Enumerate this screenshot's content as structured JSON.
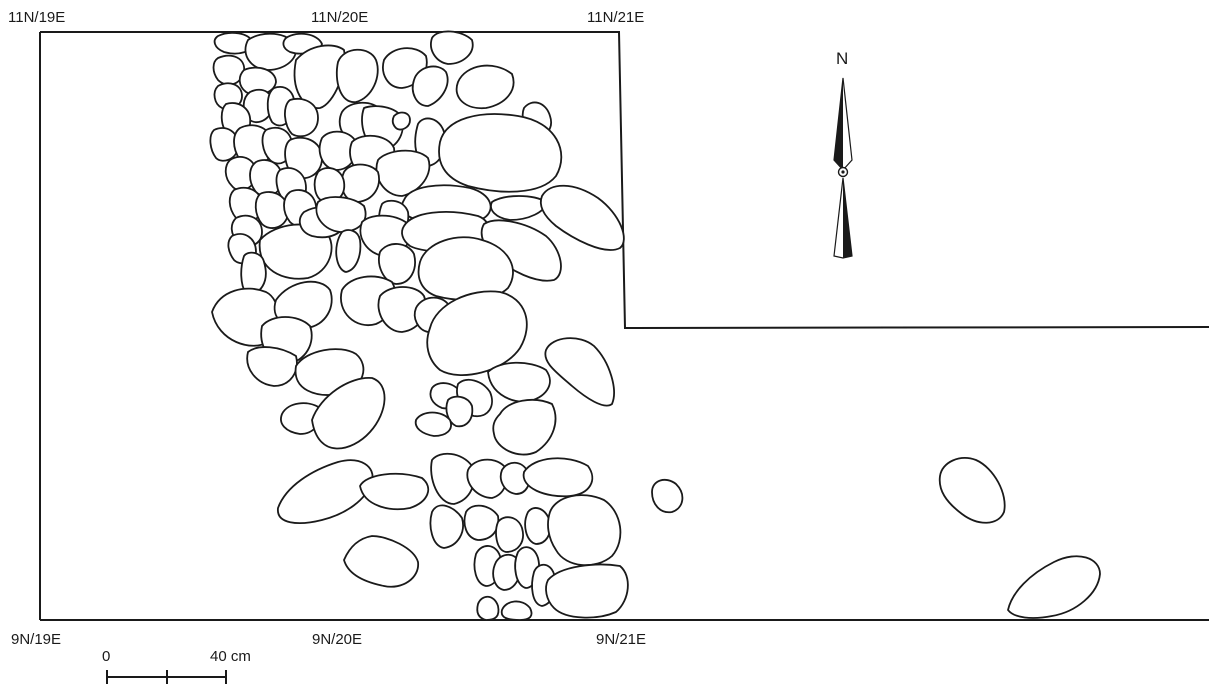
{
  "grid_labels": {
    "nw": "11N/19E",
    "n_mid": "11N/20E",
    "ne": "11N/21E",
    "sw": "9N/19E",
    "s_mid": "9N/20E",
    "se": "9N/21E"
  },
  "north_arrow": {
    "label": "N",
    "icon": "north-arrow-icon"
  },
  "scale_bar": {
    "start_label": "0",
    "end_label": "40 cm"
  },
  "colors": {
    "line": "#1a1a1a",
    "background": "#ffffff"
  }
}
